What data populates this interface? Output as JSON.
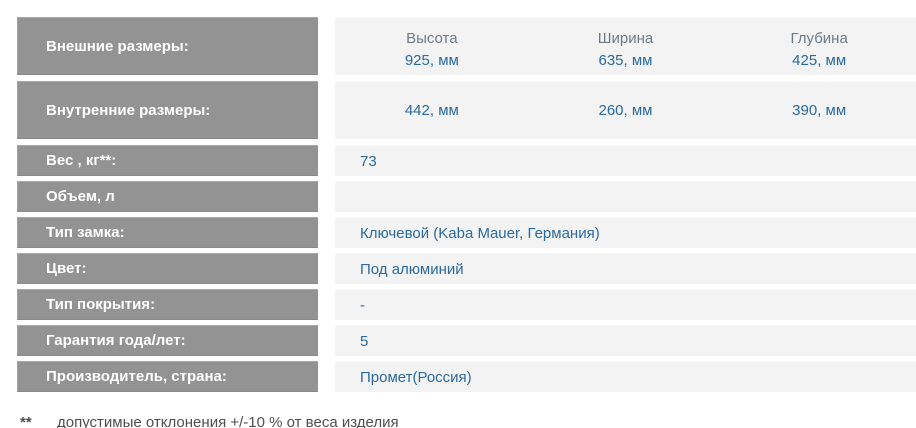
{
  "colors": {
    "label_bg": "#939393",
    "label_text": "#ffffff",
    "value_bg": "#f3f3f3",
    "value_text": "#2a6a9f",
    "dims_header_text": "#6d7b85"
  },
  "table": {
    "rows": [
      {
        "label": "Внешние размеры:",
        "columns": [
          {
            "header": "Высота",
            "value": "925, мм"
          },
          {
            "header": "Ширина",
            "value": "635, мм"
          },
          {
            "header": "Глубина",
            "value": "425, мм"
          }
        ]
      },
      {
        "label": "Внутренние размеры:",
        "columns": [
          {
            "value": "442, мм"
          },
          {
            "value": "260, мм"
          },
          {
            "value": "390, мм"
          }
        ]
      },
      {
        "label": "Вес , кг**:",
        "value": "73"
      },
      {
        "label": "Объем, л",
        "value": ""
      },
      {
        "label": "Тип замка:",
        "value": "Ключевой (Kaba Mauer, Германия)"
      },
      {
        "label": "Цвет:",
        "value": "Под алюминий"
      },
      {
        "label": "Тип покрытия:",
        "value": "-"
      },
      {
        "label": "Гарантия года/лет:",
        "value": "5"
      },
      {
        "label": "Производитель, страна:",
        "value": "Промет(Россия)"
      }
    ],
    "footnote": {
      "marker": "**",
      "text": "допустимые отклонения +/-10 % от веса изделия"
    }
  }
}
